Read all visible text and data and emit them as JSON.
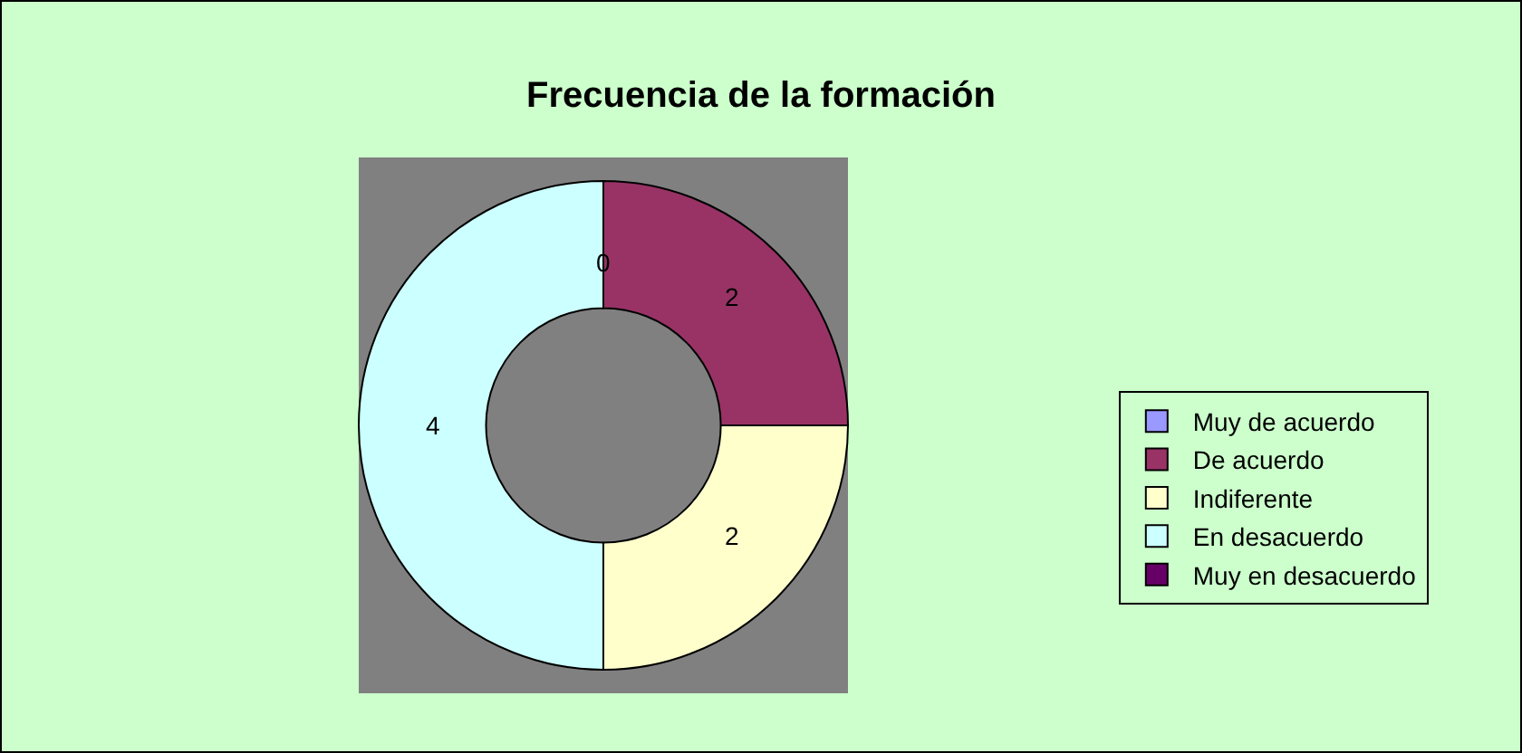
{
  "chart_data": {
    "type": "donut",
    "title": "Frecuencia de la formación",
    "categories": [
      "Muy de acuerdo",
      "De acuerdo",
      "Indiferente",
      "En desacuerdo",
      "Muy en desacuerdo"
    ],
    "values": [
      0,
      2,
      2,
      4,
      0
    ],
    "colors": [
      "#9999ff",
      "#993366",
      "#ffffcc",
      "#ccffff",
      "#660066"
    ],
    "value_labels": [
      "0",
      "2",
      "2",
      "4",
      null
    ],
    "legend": "right"
  }
}
